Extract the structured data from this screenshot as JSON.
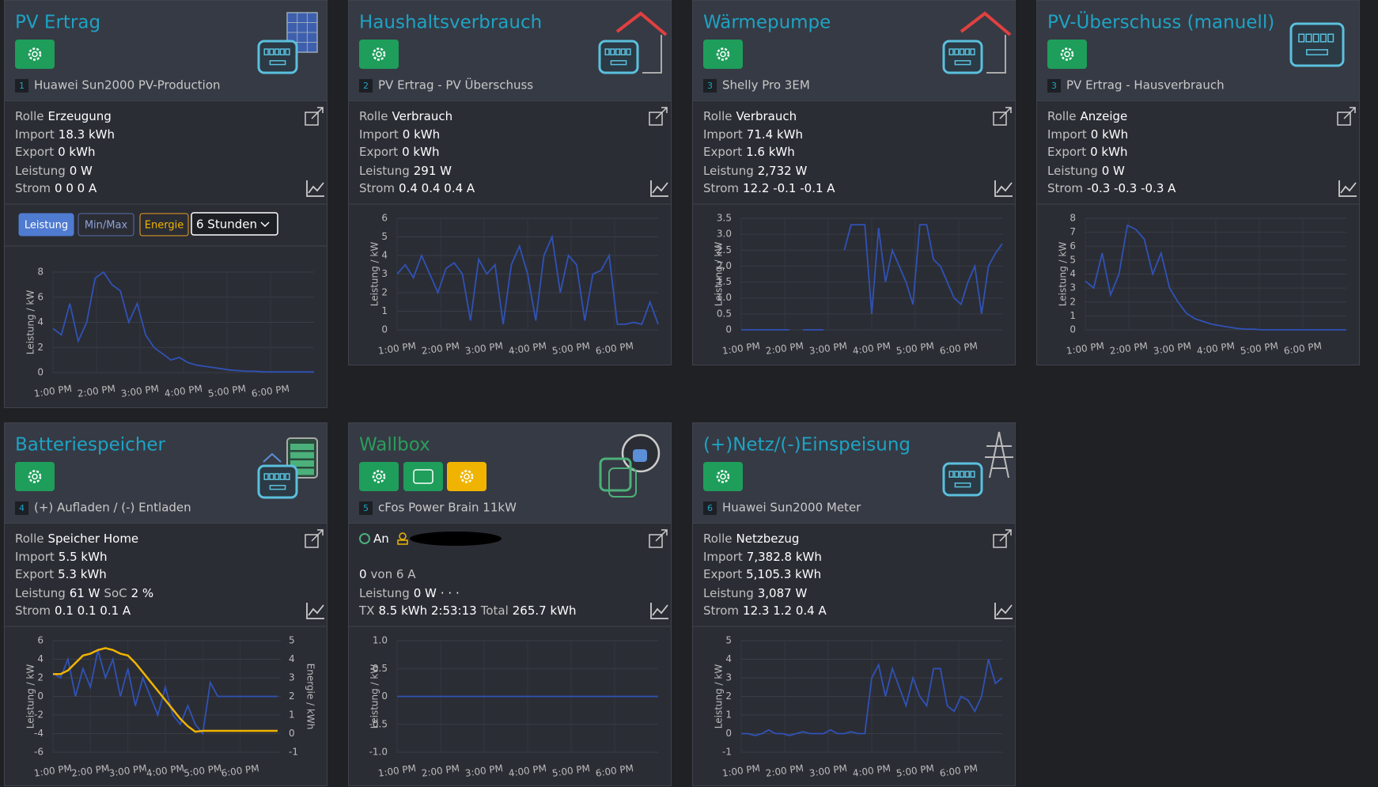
{
  "cards": [
    {
      "title": "PV Ertrag",
      "title_color": "#1ea3c4",
      "badge": "1",
      "subtitle": "Huawei Sun2000 PV-Production",
      "rows": [
        [
          {
            "k": "Rolle"
          },
          {
            "v": "Erzeugung"
          }
        ],
        [
          {
            "k": "Import"
          },
          {
            "v": "18.3 kWh"
          }
        ],
        [
          {
            "k": "Export"
          },
          {
            "v": "0 kWh"
          }
        ],
        [
          {
            "k": "Leistung"
          },
          {
            "v": "0 W"
          }
        ],
        [
          {
            "k": "Strom"
          },
          {
            "v": "0 0 0 A"
          }
        ]
      ],
      "controls": {
        "buttons": [
          "Leistung",
          "Min/Max",
          "Energie"
        ],
        "select": "6 Stunden"
      },
      "chart": {
        "type": "line",
        "ylabel": "Leistung / kW",
        "ylim": [
          0,
          8
        ],
        "yticks": [
          0,
          2,
          4,
          6,
          8
        ],
        "xticks": [
          "1:00 PM",
          "2:00 PM",
          "3:00 PM",
          "4:00 PM",
          "5:00 PM",
          "6:00 PM"
        ],
        "series": [
          {
            "color": "#2f52b5",
            "values": [
              3.5,
              3,
              5.5,
              2.5,
              4,
              7.5,
              8,
              7,
              6.5,
              4,
              5.5,
              3,
              2,
              1.5,
              1,
              1.2,
              0.8,
              0.6,
              0.5,
              0.4,
              0.3,
              0.2,
              0.15,
              0.1,
              0.1,
              0.05,
              0.05,
              0.05,
              0.05,
              0.05,
              0.05,
              0.05
            ]
          }
        ]
      }
    },
    {
      "title": "Haushaltsverbrauch",
      "title_color": "#1ea3c4",
      "badge": "2",
      "subtitle": "PV Ertrag - PV Überschuss",
      "rows": [
        [
          {
            "k": "Rolle"
          },
          {
            "v": "Verbrauch"
          }
        ],
        [
          {
            "k": "Import"
          },
          {
            "v": "0 kWh"
          }
        ],
        [
          {
            "k": "Export"
          },
          {
            "v": "0 kWh"
          }
        ],
        [
          {
            "k": "Leistung"
          },
          {
            "v": "291 W"
          }
        ],
        [
          {
            "k": "Strom"
          },
          {
            "v": "0.4 0.4 0.4 A"
          }
        ]
      ],
      "chart": {
        "type": "line",
        "ylabel": "Leistung / kW",
        "ylim": [
          0,
          6
        ],
        "yticks": [
          0,
          1,
          2,
          3,
          4,
          5,
          6
        ],
        "xticks": [
          "1:00 PM",
          "2:00 PM",
          "3:00 PM",
          "4:00 PM",
          "5:00 PM",
          "6:00 PM"
        ],
        "series": [
          {
            "color": "#2f52b5",
            "values": [
              3,
              3.5,
              2.8,
              4,
              3,
              2,
              3.3,
              3.6,
              3,
              0.5,
              3.8,
              3,
              3.5,
              0.3,
              3.5,
              4.5,
              3,
              0.5,
              4,
              5,
              2,
              4,
              3.5,
              0.5,
              3,
              3.2,
              4,
              0.3,
              0.3,
              0.4,
              0.3,
              1.5,
              0.3
            ]
          }
        ]
      }
    },
    {
      "title": "Wärmepumpe",
      "title_color": "#1ea3c4",
      "badge": "3",
      "subtitle": "Shelly Pro 3EM",
      "rows": [
        [
          {
            "k": "Rolle"
          },
          {
            "v": "Verbrauch"
          }
        ],
        [
          {
            "k": "Import"
          },
          {
            "v": "71.4 kWh"
          }
        ],
        [
          {
            "k": "Export"
          },
          {
            "v": "1.6 kWh"
          }
        ],
        [
          {
            "k": "Leistung"
          },
          {
            "v": "2,732 W"
          }
        ],
        [
          {
            "k": "Strom"
          },
          {
            "v": "12.2 -0.1 -0.1 A"
          }
        ]
      ],
      "chart": {
        "type": "line",
        "ylabel": "Leistung / kW",
        "ylim": [
          0,
          3.5
        ],
        "yticks": [
          0,
          0.5,
          {
            "value": 1,
            "label": "1.0"
          },
          1.5,
          {
            "value": 2,
            "label": "2.0"
          },
          2.5,
          {
            "value": 3,
            "label": "3.0"
          },
          3.5
        ],
        "xticks": [
          "1:00 PM",
          "2:00 PM",
          "3:00 PM",
          "4:00 PM",
          "5:00 PM",
          "6:00 PM"
        ],
        "series": [
          {
            "color": "#2f52b5",
            "values": [
              0,
              0,
              0,
              0,
              0,
              0,
              0,
              0,
              null,
              0,
              0,
              0,
              0,
              null,
              null,
              2.5,
              3.3,
              3.3,
              3.3,
              0.5,
              3.2,
              1.5,
              2.5,
              2,
              1.5,
              0.8,
              3.3,
              3.3,
              2.2,
              2,
              1.5,
              1,
              0.8,
              1.5,
              2,
              0.5,
              2,
              2.4,
              2.7
            ]
          }
        ]
      }
    },
    {
      "title": "PV-Überschuss (manuell)",
      "title_color": "#1ea3c4",
      "badge": "3",
      "subtitle": "PV Ertrag - Hausverbrauch",
      "rows": [
        [
          {
            "k": "Rolle"
          },
          {
            "v": "Anzeige"
          }
        ],
        [
          {
            "k": "Import"
          },
          {
            "v": "0 kWh"
          }
        ],
        [
          {
            "k": "Export"
          },
          {
            "v": "0 kWh"
          }
        ],
        [
          {
            "k": "Leistung"
          },
          {
            "v": "0 W"
          }
        ],
        [
          {
            "k": "Strom"
          },
          {
            "v": "-0.3 -0.3 -0.3 A"
          }
        ]
      ],
      "chart": {
        "type": "line",
        "ylabel": "Leistung / kW",
        "ylim": [
          0,
          8
        ],
        "yticks": [
          0,
          1,
          2,
          3,
          4,
          5,
          6,
          7,
          8
        ],
        "xticks": [
          "1:00 PM",
          "2:00 PM",
          "3:00 PM",
          "4:00 PM",
          "5:00 PM",
          "6:00 PM"
        ],
        "series": [
          {
            "color": "#2f52b5",
            "values": [
              3.5,
              3,
              5.5,
              2.5,
              4,
              7.5,
              7.2,
              6.5,
              4,
              5.5,
              3,
              2,
              1.2,
              0.8,
              0.6,
              0.4,
              0.3,
              0.2,
              0.1,
              0.05,
              0.05,
              0,
              0,
              0,
              0,
              0,
              0,
              0,
              0,
              0,
              0,
              0
            ]
          }
        ]
      }
    },
    {
      "title": "Batteriespeicher",
      "title_color": "#1ea3c4",
      "badge": "4",
      "subtitle": "(+) Aufladen / (-) Entladen",
      "rows": [
        [
          {
            "k": "Rolle"
          },
          {
            "v": "Speicher Home"
          }
        ],
        [
          {
            "k": "Import"
          },
          {
            "v": "5.5 kWh"
          }
        ],
        [
          {
            "k": "Export"
          },
          {
            "v": "5.3 kWh"
          }
        ],
        [
          {
            "k": "Leistung"
          },
          {
            "v": "61 W"
          },
          {
            "k": "SoC"
          },
          {
            "v": "2 %"
          }
        ],
        [
          {
            "k": "Strom"
          },
          {
            "v": "0.1 0.1 0.1 A"
          }
        ]
      ],
      "chart": {
        "type": "line",
        "ylabel": "Leistung / kW",
        "y2label": "Energie / kWh",
        "ylim": [
          -6,
          6
        ],
        "yticks": [
          -6,
          -4,
          -2,
          0,
          2,
          4,
          6
        ],
        "y2lim": [
          -1,
          5
        ],
        "y2ticks": [
          -1,
          0,
          1,
          2,
          3,
          4,
          5
        ],
        "xticks": [
          "1:00 PM",
          "2:00 PM",
          "3:00 PM",
          "4:00 PM",
          "5:00 PM",
          "6:00 PM"
        ],
        "series": [
          {
            "color": "#2f52b5",
            "values": [
              2.5,
              2,
              4,
              0,
              3,
              1,
              5,
              2,
              4,
              0,
              3,
              -1,
              2,
              0,
              -2,
              1,
              -2,
              -3,
              -1,
              -3,
              -4,
              1.5,
              0,
              0,
              0,
              0,
              0,
              0,
              0,
              0,
              0
            ]
          },
          {
            "color": "#f0b400",
            "axis": "y2",
            "values": [
              3.2,
              3.2,
              3.4,
              3.8,
              4.2,
              4.3,
              4.5,
              4.6,
              4.5,
              4.3,
              4.2,
              3.8,
              3.3,
              2.8,
              2.3,
              1.8,
              1.3,
              0.8,
              0.4,
              0.1,
              0.15,
              0.15,
              0.15,
              0.15,
              0.15,
              0.15,
              0.15,
              0.15,
              0.15,
              0.15,
              0.15
            ]
          }
        ]
      }
    },
    {
      "title": "Wallbox",
      "title_color": "#2a9d5c",
      "badge": "5",
      "subtitle": "cFos Power Brain 11kW",
      "rows": [
        [
          {
            "v": "An"
          }
        ],
        null,
        [
          {
            "v": "0"
          },
          {
            "k": "von 6 A"
          }
        ],
        [
          {
            "k": "Leistung"
          },
          {
            "v": "0 W"
          },
          {
            "v": "· · ·"
          }
        ],
        [
          {
            "k": "TX"
          },
          {
            "v": "8.5 kWh 2:53:13"
          },
          {
            "k": "Total"
          },
          {
            "v": "265.7 kWh"
          }
        ]
      ],
      "chart": {
        "type": "line",
        "ylabel": "Leistung / kW",
        "ylim": [
          -1,
          1
        ],
        "yticks": [
          {
            "value": -1,
            "label": "-1.0"
          },
          -0.5,
          0,
          0.5,
          {
            "value": 1,
            "label": "1.0"
          }
        ],
        "xticks": [
          "1:00 PM",
          "2:00 PM",
          "3:00 PM",
          "4:00 PM",
          "5:00 PM",
          "6:00 PM"
        ],
        "series": [
          {
            "color": "#2f52b5",
            "values": [
              0,
              0,
              0,
              0,
              0,
              0,
              0,
              0,
              0,
              0,
              0,
              0,
              0,
              0,
              0,
              0,
              0,
              0,
              0,
              0
            ]
          }
        ]
      }
    },
    {
      "title": "(+)Netz/(-)Einspeisung",
      "title_color": "#1ea3c4",
      "badge": "6",
      "subtitle": "Huawei Sun2000 Meter",
      "rows": [
        [
          {
            "k": "Rolle"
          },
          {
            "v": "Netzbezug"
          }
        ],
        [
          {
            "k": "Import"
          },
          {
            "v": "7,382.8 kWh"
          }
        ],
        [
          {
            "k": "Export"
          },
          {
            "v": "5,105.3 kWh"
          }
        ],
        [
          {
            "k": "Leistung"
          },
          {
            "v": "3,087 W"
          }
        ],
        [
          {
            "k": "Strom"
          },
          {
            "v": "12.3 1.2 0.4 A"
          }
        ]
      ],
      "chart": {
        "type": "line",
        "ylabel": "Leistung / kW",
        "ylim": [
          -1,
          5
        ],
        "yticks": [
          -1,
          0,
          1,
          2,
          3,
          4,
          5
        ],
        "xticks": [
          "1:00 PM",
          "2:00 PM",
          "3:00 PM",
          "4:00 PM",
          "5:00 PM",
          "6:00 PM"
        ],
        "series": [
          {
            "color": "#2f52b5",
            "values": [
              0,
              0,
              -0.1,
              0,
              0.2,
              0,
              0,
              -0.1,
              0,
              0.1,
              0,
              0,
              0,
              0.2,
              0,
              0,
              0.1,
              0,
              0,
              3,
              3.7,
              2,
              3.5,
              2.5,
              1.5,
              3,
              2,
              1.5,
              3.5,
              3.5,
              1.5,
              1.2,
              2,
              1.8,
              1.2,
              2,
              4,
              2.7,
              3
            ]
          }
        ]
      }
    }
  ]
}
